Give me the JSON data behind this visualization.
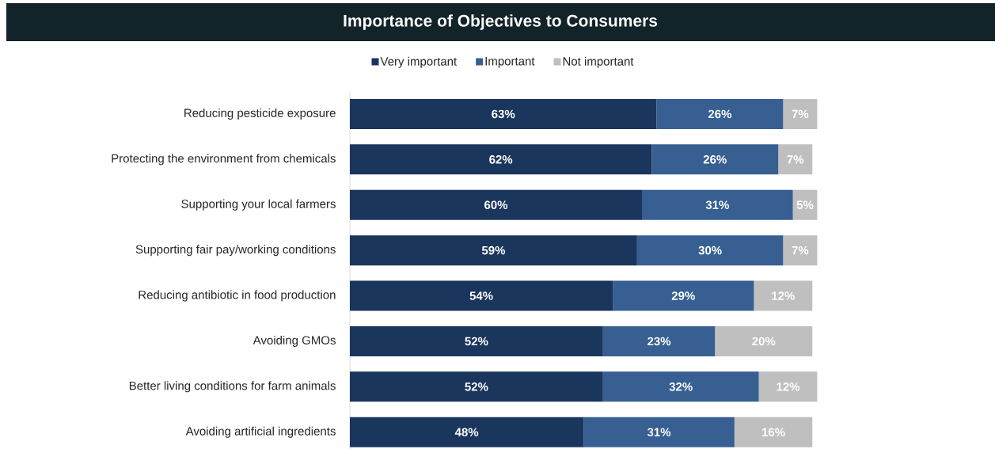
{
  "chart_data": {
    "type": "bar",
    "orientation": "horizontal",
    "stacked": true,
    "title": "Importance of Objectives to Consumers",
    "categories": [
      "Reducing pesticide exposure",
      "Protecting the environment from chemicals",
      "Supporting your local farmers",
      "Supporting fair pay/working conditions",
      "Reducing antibiotic in food production",
      "Avoiding GMOs",
      "Better living conditions for farm animals",
      "Avoiding artificial ingredients"
    ],
    "series": [
      {
        "name": "Very important",
        "color": "#1b365d",
        "values": [
          63,
          62,
          60,
          59,
          54,
          52,
          52,
          48
        ],
        "value_labels": [
          "63%",
          "62%",
          "60%",
          "59%",
          "54%",
          "52%",
          "52%",
          "48%"
        ]
      },
      {
        "name": "Important",
        "color": "#375f92",
        "values": [
          26,
          26,
          31,
          30,
          29,
          23,
          32,
          31
        ],
        "value_labels": [
          "26%",
          "26%",
          "31%",
          "30%",
          "29%",
          "23%",
          "32%",
          "31%"
        ]
      },
      {
        "name": "Not important",
        "color": "#bfbfbf",
        "values": [
          7,
          7,
          5,
          7,
          12,
          20,
          12,
          16
        ],
        "value_labels": [
          "7%",
          "7%",
          "5%",
          "7%",
          "12%",
          "20%",
          "12%",
          "16%"
        ]
      }
    ],
    "tick_labels": "y",
    "legend": "top"
  }
}
